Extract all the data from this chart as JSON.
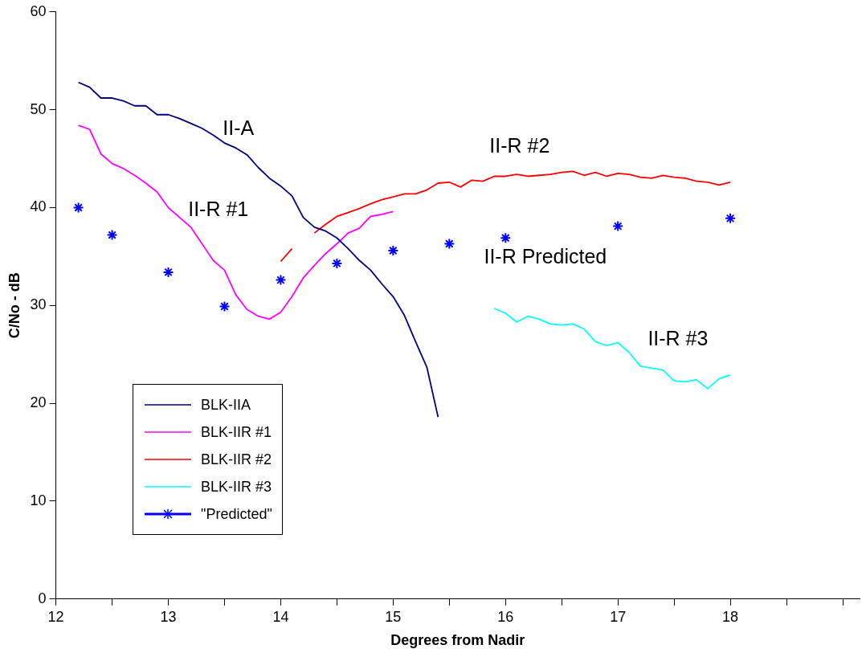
{
  "chart_data": {
    "type": "line",
    "xlabel": "Degrees from Nadir",
    "ylabel": "C/No - dB",
    "xlim": [
      12,
      19.15
    ],
    "xticks": [
      12,
      {
        "value": 12.5,
        "label": null
      },
      13,
      {
        "value": 13.5,
        "label": null
      },
      14,
      {
        "value": 14.5,
        "label": null
      },
      15,
      {
        "value": 15.5,
        "label": null
      },
      16,
      {
        "value": 16.5,
        "label": null
      },
      17,
      {
        "value": 17.5,
        "label": null
      },
      18,
      {
        "value": 18.5,
        "label": null
      },
      {
        "value": 19,
        "label": null
      }
    ],
    "ylim": [
      0,
      60
    ],
    "yticks": [
      0,
      10,
      20,
      30,
      40,
      50,
      60
    ],
    "grid": false,
    "legend": "bottom left",
    "marker": "none",
    "line_style": "solid",
    "series": [
      {
        "name": "BLK-IIA",
        "color": "#000080",
        "x": [
          12.2,
          12.3,
          12.4,
          12.5,
          12.6,
          12.7,
          12.8,
          12.9,
          13.0,
          13.1,
          13.2,
          13.3,
          13.4,
          13.5,
          13.6,
          13.7,
          13.8,
          13.9,
          14.0,
          14.1,
          14.2,
          14.3,
          14.4,
          14.5,
          14.6,
          14.7,
          14.8,
          14.9,
          15.0,
          15.1,
          15.2,
          15.3,
          15.4
        ],
        "values": [
          52.8,
          52.3,
          51.2,
          51.2,
          50.9,
          50.4,
          50.4,
          49.5,
          49.5,
          49.1,
          48.6,
          48.1,
          47.4,
          46.6,
          46.1,
          45.4,
          44.1,
          43.0,
          42.2,
          41.2,
          39.0,
          38.0,
          37.6,
          36.9,
          35.8,
          34.6,
          33.6,
          32.2,
          30.9,
          29.0,
          26.3,
          23.7,
          18.6
        ]
      },
      {
        "name": "BLK-IIR #1",
        "color": "#ff00ff",
        "x": [
          12.2,
          12.3,
          12.4,
          12.5,
          12.6,
          12.7,
          12.8,
          12.9,
          13.0,
          13.1,
          13.2,
          13.3,
          13.4,
          13.5,
          13.6,
          13.7,
          13.8,
          13.9,
          14.0,
          14.1,
          14.2,
          14.3,
          14.4,
          14.5,
          14.6,
          14.7,
          14.8,
          14.9,
          15.0
        ],
        "values": [
          48.4,
          48.0,
          45.5,
          44.5,
          44.0,
          43.3,
          42.5,
          41.6,
          40.0,
          39.0,
          38.0,
          36.3,
          34.6,
          33.6,
          31.1,
          29.6,
          28.9,
          28.6,
          29.3,
          30.9,
          32.8,
          34.1,
          35.3,
          36.3,
          37.4,
          37.9,
          39.1,
          39.3,
          39.6
        ]
      },
      {
        "name": "BLK-IIR #2",
        "color": "#ff0000",
        "x": [
          14.0,
          14.1,
          14.2,
          14.3,
          14.4,
          14.5,
          14.6,
          14.7,
          14.8,
          14.9,
          15.0,
          15.1,
          15.2,
          15.3,
          15.4,
          15.5,
          15.6,
          15.7,
          15.8,
          15.9,
          16.0,
          16.1,
          16.2,
          16.3,
          16.4,
          16.5,
          16.6,
          16.7,
          16.8,
          16.9,
          17.0,
          17.1,
          17.2,
          17.3,
          17.4,
          17.5,
          17.6,
          17.7,
          17.8,
          17.9,
          18.0
        ],
        "values": [
          34.5,
          35.8,
          null,
          37.4,
          38.3,
          39.1,
          39.5,
          39.9,
          40.4,
          40.8,
          41.1,
          41.4,
          41.4,
          41.8,
          42.5,
          42.6,
          42.1,
          42.8,
          42.7,
          43.2,
          43.2,
          43.4,
          43.2,
          43.3,
          43.4,
          43.6,
          43.7,
          43.3,
          43.6,
          43.2,
          43.5,
          43.4,
          43.1,
          43.0,
          43.3,
          43.1,
          43.0,
          42.7,
          42.6,
          42.3,
          42.6
        ]
      },
      {
        "name": "BLK-IIR #3",
        "color": "#00ffff",
        "x": [
          15.9,
          16.0,
          16.1,
          16.2,
          16.3,
          16.4,
          16.5,
          16.6,
          16.7,
          16.8,
          16.9,
          17.0,
          17.1,
          17.2,
          17.3,
          17.4,
          17.5,
          17.6,
          17.7,
          17.8,
          17.9,
          18.0
        ],
        "values": [
          29.7,
          29.2,
          28.3,
          28.9,
          28.6,
          28.1,
          28.0,
          28.1,
          27.6,
          26.3,
          25.9,
          26.2,
          25.2,
          23.8,
          23.6,
          23.4,
          22.3,
          22.2,
          22.4,
          21.5,
          22.5,
          22.9
        ]
      },
      {
        "name": "\"Predicted\"",
        "color": "#0000ff",
        "type": "scatter",
        "marker": "cross",
        "x": [
          12.2,
          12.5,
          13.0,
          13.5,
          14.0,
          14.5,
          15.0,
          15.5,
          16.0,
          17.0,
          18.0
        ],
        "values": [
          40.0,
          37.2,
          33.4,
          29.9,
          32.6,
          34.3,
          35.6,
          36.3,
          36.9,
          38.1,
          38.9
        ]
      }
    ],
    "annotations": [
      "II-A",
      "II-R #1",
      "II-R #2",
      "II-R Predicted",
      "II-R #3"
    ]
  }
}
